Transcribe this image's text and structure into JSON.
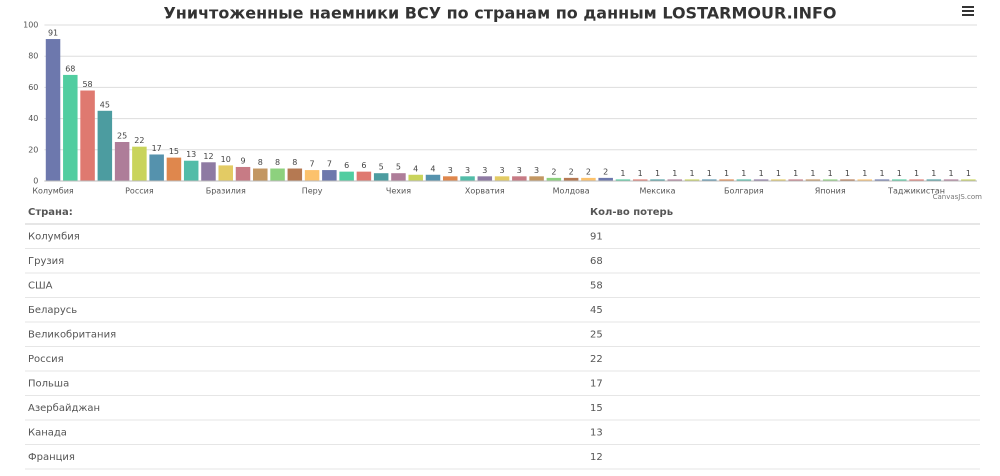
{
  "chart_data": {
    "type": "bar",
    "title": "Уничтоженные наемники ВСУ по странам по данным LOSTARMOUR.INFO",
    "categories": [
      "Колумбия",
      null,
      null,
      null,
      null,
      "Россия",
      null,
      null,
      null,
      null,
      "Бразилия",
      null,
      null,
      null,
      null,
      "Перу",
      null,
      null,
      null,
      null,
      "Чехия",
      null,
      null,
      null,
      null,
      "Хорватия",
      null,
      null,
      null,
      null,
      "Молдова",
      null,
      null,
      null,
      null,
      "Мексика",
      null,
      null,
      null,
      null,
      "Болгария",
      null,
      null,
      null,
      null,
      "Япония",
      null,
      null,
      null,
      null,
      "Таджикистан",
      null,
      null,
      null
    ],
    "values": [
      91,
      68,
      58,
      45,
      25,
      22,
      17,
      15,
      13,
      12,
      10,
      9,
      8,
      8,
      8,
      7,
      7,
      6,
      6,
      5,
      5,
      4,
      4,
      3,
      3,
      3,
      3,
      3,
      3,
      2,
      2,
      2,
      2,
      1,
      1,
      1,
      1,
      1,
      1,
      1,
      1,
      1,
      1,
      1,
      1,
      1,
      1,
      1,
      1,
      1,
      1,
      1,
      1,
      1
    ],
    "colors": [
      "#6D78AD",
      "#51CDA0",
      "#DF7970",
      "#4C9CA0",
      "#AE7D99",
      "#C9D45C",
      "#5592AD",
      "#DF874D",
      "#52BCA8",
      "#8E7AA3",
      "#E3CB64",
      "#C77B85",
      "#C39762",
      "#8DD17E",
      "#B57952",
      "#FCC26C"
    ],
    "ylim": [
      0,
      100
    ],
    "yticks": [
      0,
      20,
      40,
      60,
      80,
      100
    ],
    "grid": true,
    "watermark": "CanvasJS.com"
  },
  "table": {
    "header": [
      "Страна:",
      "Кол-во потерь"
    ],
    "rows": [
      [
        "Колумбия",
        "91"
      ],
      [
        "Грузия",
        "68"
      ],
      [
        "США",
        "58"
      ],
      [
        "Беларусь",
        "45"
      ],
      [
        "Великобритания",
        "25"
      ],
      [
        "Россия",
        "22"
      ],
      [
        "Польша",
        "17"
      ],
      [
        "Азербайджан",
        "15"
      ],
      [
        "Канада",
        "13"
      ],
      [
        "Франция",
        "12"
      ]
    ]
  }
}
